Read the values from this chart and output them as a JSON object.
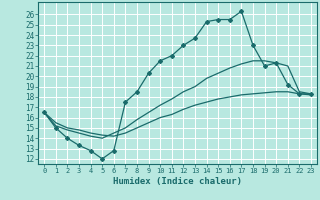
{
  "xlabel": "Humidex (Indice chaleur)",
  "ylabel": "",
  "bg_color": "#b8e8e0",
  "line_color": "#1a6b6b",
  "grid_color": "#ffffff",
  "xlim": [
    -0.5,
    23.5
  ],
  "ylim": [
    11.5,
    27.2
  ],
  "xticks": [
    0,
    1,
    2,
    3,
    4,
    5,
    6,
    7,
    8,
    9,
    10,
    11,
    12,
    13,
    14,
    15,
    16,
    17,
    18,
    19,
    20,
    21,
    22,
    23
  ],
  "yticks": [
    12,
    13,
    14,
    15,
    16,
    17,
    18,
    19,
    20,
    21,
    22,
    23,
    24,
    25,
    26
  ],
  "line1_x": [
    0,
    1,
    2,
    3,
    4,
    5,
    6,
    7,
    8,
    9,
    10,
    11,
    12,
    13,
    14,
    15,
    16,
    17,
    18,
    19,
    20,
    21,
    22,
    23
  ],
  "line1_y": [
    16.5,
    15.0,
    14.0,
    13.3,
    12.8,
    12.0,
    12.8,
    17.5,
    18.5,
    20.3,
    21.5,
    22.0,
    23.0,
    23.7,
    25.3,
    25.5,
    25.5,
    26.3,
    23.0,
    21.0,
    21.3,
    19.2,
    18.3,
    18.3
  ],
  "line2_x": [
    0,
    1,
    2,
    3,
    4,
    5,
    6,
    7,
    8,
    9,
    10,
    11,
    12,
    13,
    14,
    15,
    16,
    17,
    18,
    19,
    20,
    21,
    22,
    23
  ],
  "line2_y": [
    16.5,
    15.2,
    14.8,
    14.5,
    14.2,
    14.0,
    14.5,
    15.0,
    15.8,
    16.5,
    17.2,
    17.8,
    18.5,
    19.0,
    19.8,
    20.3,
    20.8,
    21.2,
    21.5,
    21.5,
    21.3,
    21.0,
    18.5,
    18.3
  ],
  "line3_x": [
    0,
    1,
    2,
    3,
    4,
    5,
    6,
    7,
    8,
    9,
    10,
    11,
    12,
    13,
    14,
    15,
    16,
    17,
    18,
    19,
    20,
    21,
    22,
    23
  ],
  "line3_y": [
    16.5,
    15.5,
    15.0,
    14.8,
    14.5,
    14.3,
    14.2,
    14.5,
    15.0,
    15.5,
    16.0,
    16.3,
    16.8,
    17.2,
    17.5,
    17.8,
    18.0,
    18.2,
    18.3,
    18.4,
    18.5,
    18.5,
    18.3,
    18.2
  ]
}
